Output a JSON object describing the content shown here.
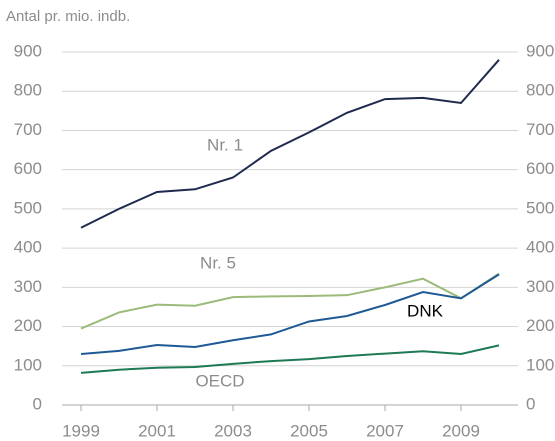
{
  "chart_data": {
    "type": "line",
    "title": "Antal pr. mio. indb.",
    "x": [
      1999,
      2000,
      2001,
      2002,
      2003,
      2004,
      2005,
      2006,
      2007,
      2008,
      2009,
      2010
    ],
    "xlim": [
      1998.5,
      2010.5
    ],
    "xticks": [
      1999,
      2001,
      2003,
      2005,
      2007,
      2009
    ],
    "ylim": [
      0,
      900
    ],
    "yticks": [
      0,
      100,
      200,
      300,
      400,
      500,
      600,
      700,
      800,
      900
    ],
    "y2lim": [
      0,
      900
    ],
    "y2ticks": [
      0,
      100,
      200,
      300,
      400,
      500,
      600,
      700,
      800,
      900
    ],
    "grid": true,
    "series": [
      {
        "name": "Nr. 1",
        "color": "#1f2a4e",
        "values": [
          452,
          500,
          543,
          550,
          580,
          648,
          695,
          745,
          780,
          783,
          770,
          880
        ]
      },
      {
        "name": "Nr. 5",
        "color": "#9cbb7a",
        "values": [
          195,
          236,
          256,
          253,
          275,
          277,
          278,
          280,
          300,
          322,
          272,
          335
        ]
      },
      {
        "name": "DNK",
        "color": "#1f5a96",
        "values": [
          130,
          138,
          153,
          148,
          165,
          180,
          213,
          227,
          255,
          288,
          272,
          333
        ]
      },
      {
        "name": "OECD",
        "color": "#1e7a55",
        "values": [
          82,
          90,
          95,
          97,
          105,
          112,
          117,
          125,
          131,
          137,
          130,
          152
        ]
      }
    ]
  }
}
